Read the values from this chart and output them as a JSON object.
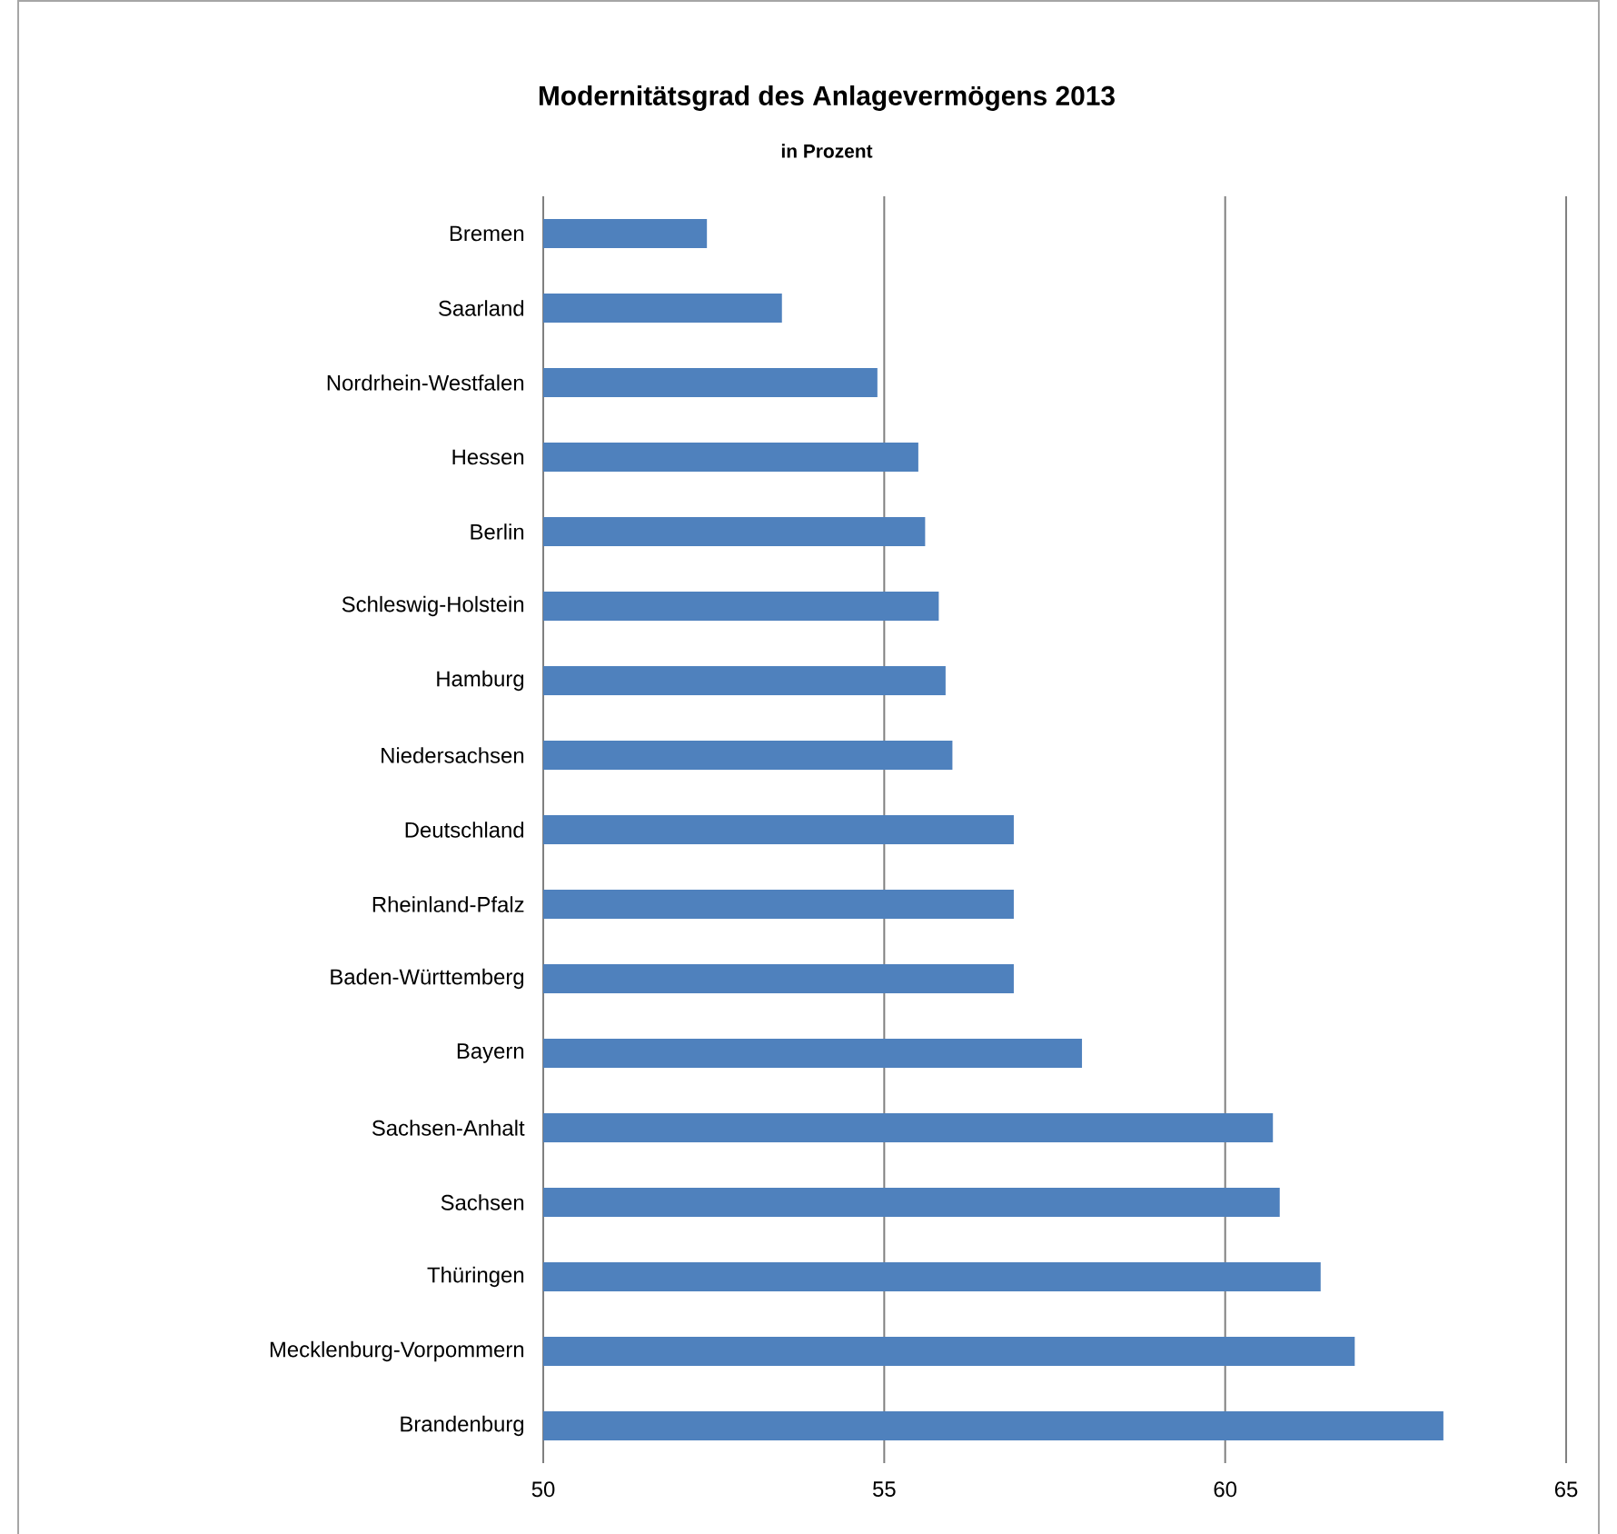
{
  "chart_data": {
    "type": "bar",
    "orientation": "horizontal",
    "title": "Modernitätsgrad des Anlagevermögens 2013",
    "subtitle": "in Prozent",
    "categories": [
      "Bremen",
      "Saarland",
      "Nordrhein-Westfalen",
      "Hessen",
      "Berlin",
      "Schleswig-Holstein",
      "Hamburg",
      "Niedersachsen",
      "Deutschland",
      "Rheinland-Pfalz",
      "Baden-Württemberg",
      "Bayern",
      "Sachsen-Anhalt",
      "Sachsen",
      "Thüringen",
      "Mecklenburg-Vorpommern",
      "Brandenburg"
    ],
    "values": [
      52.4,
      53.5,
      54.9,
      55.5,
      55.6,
      55.8,
      55.9,
      56.0,
      56.9,
      56.9,
      56.9,
      57.9,
      60.7,
      60.8,
      61.4,
      61.9,
      63.2
    ],
    "color": "#4f81bd",
    "xlim": [
      50,
      65
    ],
    "xticks": [
      50,
      55,
      60,
      65
    ],
    "grid": "x"
  }
}
